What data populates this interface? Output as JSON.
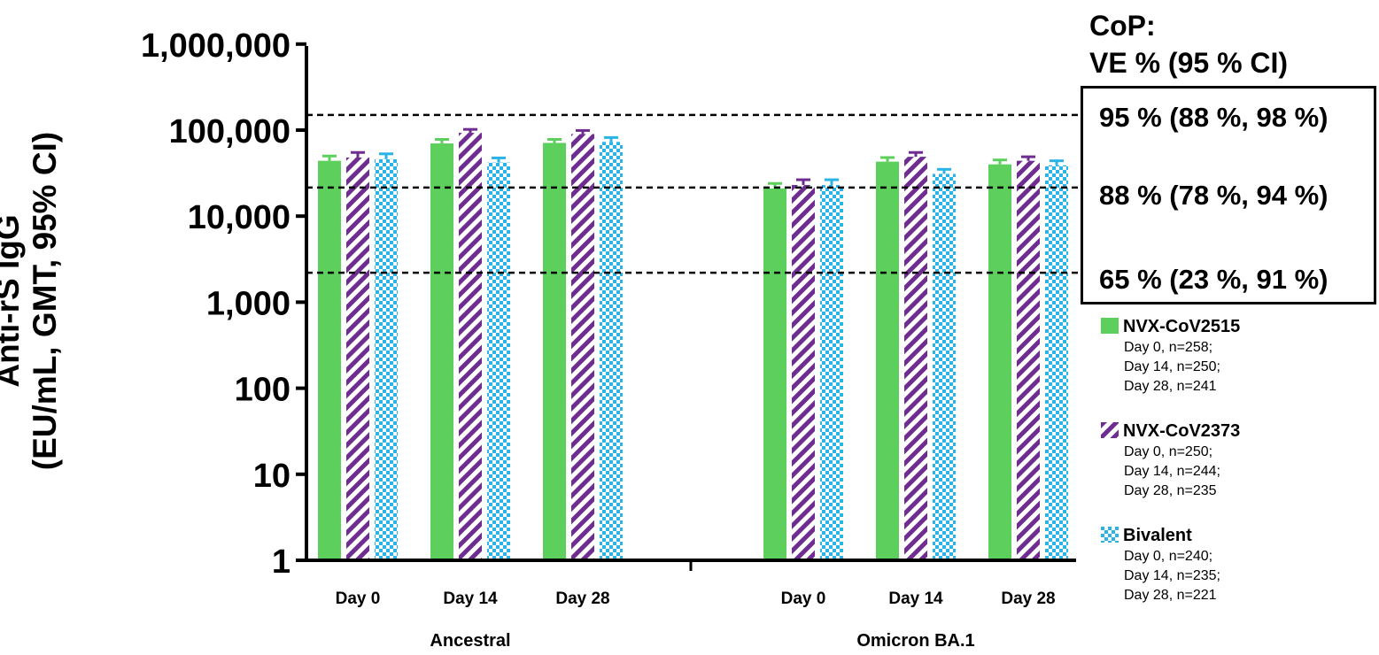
{
  "chart_data": {
    "type": "bar",
    "ylabel_line1": "Anti-rS IgG",
    "ylabel_line2": "(EU/mL, GMT, 95% CI)",
    "yscale": "log",
    "ylim": [
      1,
      1000000
    ],
    "ytick_labels": [
      "1,000,000",
      "100,000",
      "10,000",
      "1,000",
      "100",
      "10",
      "1"
    ],
    "ytick_values": [
      1000000,
      100000,
      10000,
      1000,
      100,
      10,
      1
    ],
    "groups": [
      {
        "label": "Ancestral",
        "categories": [
          "Day 0",
          "Day 14",
          "Day 28"
        ]
      },
      {
        "label": "Omicron BA.1",
        "categories": [
          "Day 0",
          "Day 14",
          "Day 28"
        ]
      }
    ],
    "series": [
      {
        "name": "NVX-CoV2515",
        "color": "#5ccf5c",
        "pattern": "solid",
        "ancestral": [
          44000,
          70000,
          71000
        ],
        "ancestral_upper": [
          50000,
          78000,
          78000
        ],
        "omicron": [
          21000,
          43000,
          40000
        ],
        "omicron_upper": [
          24000,
          48000,
          45000
        ]
      },
      {
        "name": "NVX-CoV2373",
        "color": "#6f2c91",
        "pattern": "diagonal-stripes",
        "ancestral": [
          48000,
          93000,
          90000
        ],
        "ancestral_upper": [
          55000,
          102000,
          99000
        ],
        "omicron": [
          23000,
          49000,
          44000
        ],
        "omicron_upper": [
          26500,
          55000,
          49000
        ]
      },
      {
        "name": "Bivalent",
        "color": "#2ab3e6",
        "pattern": "checkerboard",
        "ancestral": [
          46000,
          42000,
          73000
        ],
        "ancestral_upper": [
          53000,
          47500,
          82000
        ],
        "omicron": [
          23000,
          31000,
          39000
        ],
        "omicron_upper": [
          26500,
          35000,
          44000
        ]
      }
    ],
    "reference_lines": [
      150000,
      21500,
      2200
    ],
    "legend_position": "right",
    "grid": false
  },
  "cop": {
    "heading_line1": "CoP:",
    "heading_line2": "VE % (95 % CI)",
    "items": [
      "95 % (88 %, 98 %)",
      "88 % (78 %, 94 %)",
      "65 % (23 %, 91 %)"
    ]
  },
  "legend": [
    {
      "name": "NVX-CoV2515",
      "lines": [
        "Day 0, n=258;",
        "Day 14, n=250;",
        "Day 28, n=241"
      ]
    },
    {
      "name": "NVX-CoV2373",
      "lines": [
        "Day 0, n=250;",
        "Day 14, n=244;",
        "Day 28, n=235"
      ]
    },
    {
      "name": "Bivalent",
      "lines": [
        "Day 0, n=240;",
        "Day 14, n=235;",
        "Day 28, n=221"
      ]
    }
  ]
}
